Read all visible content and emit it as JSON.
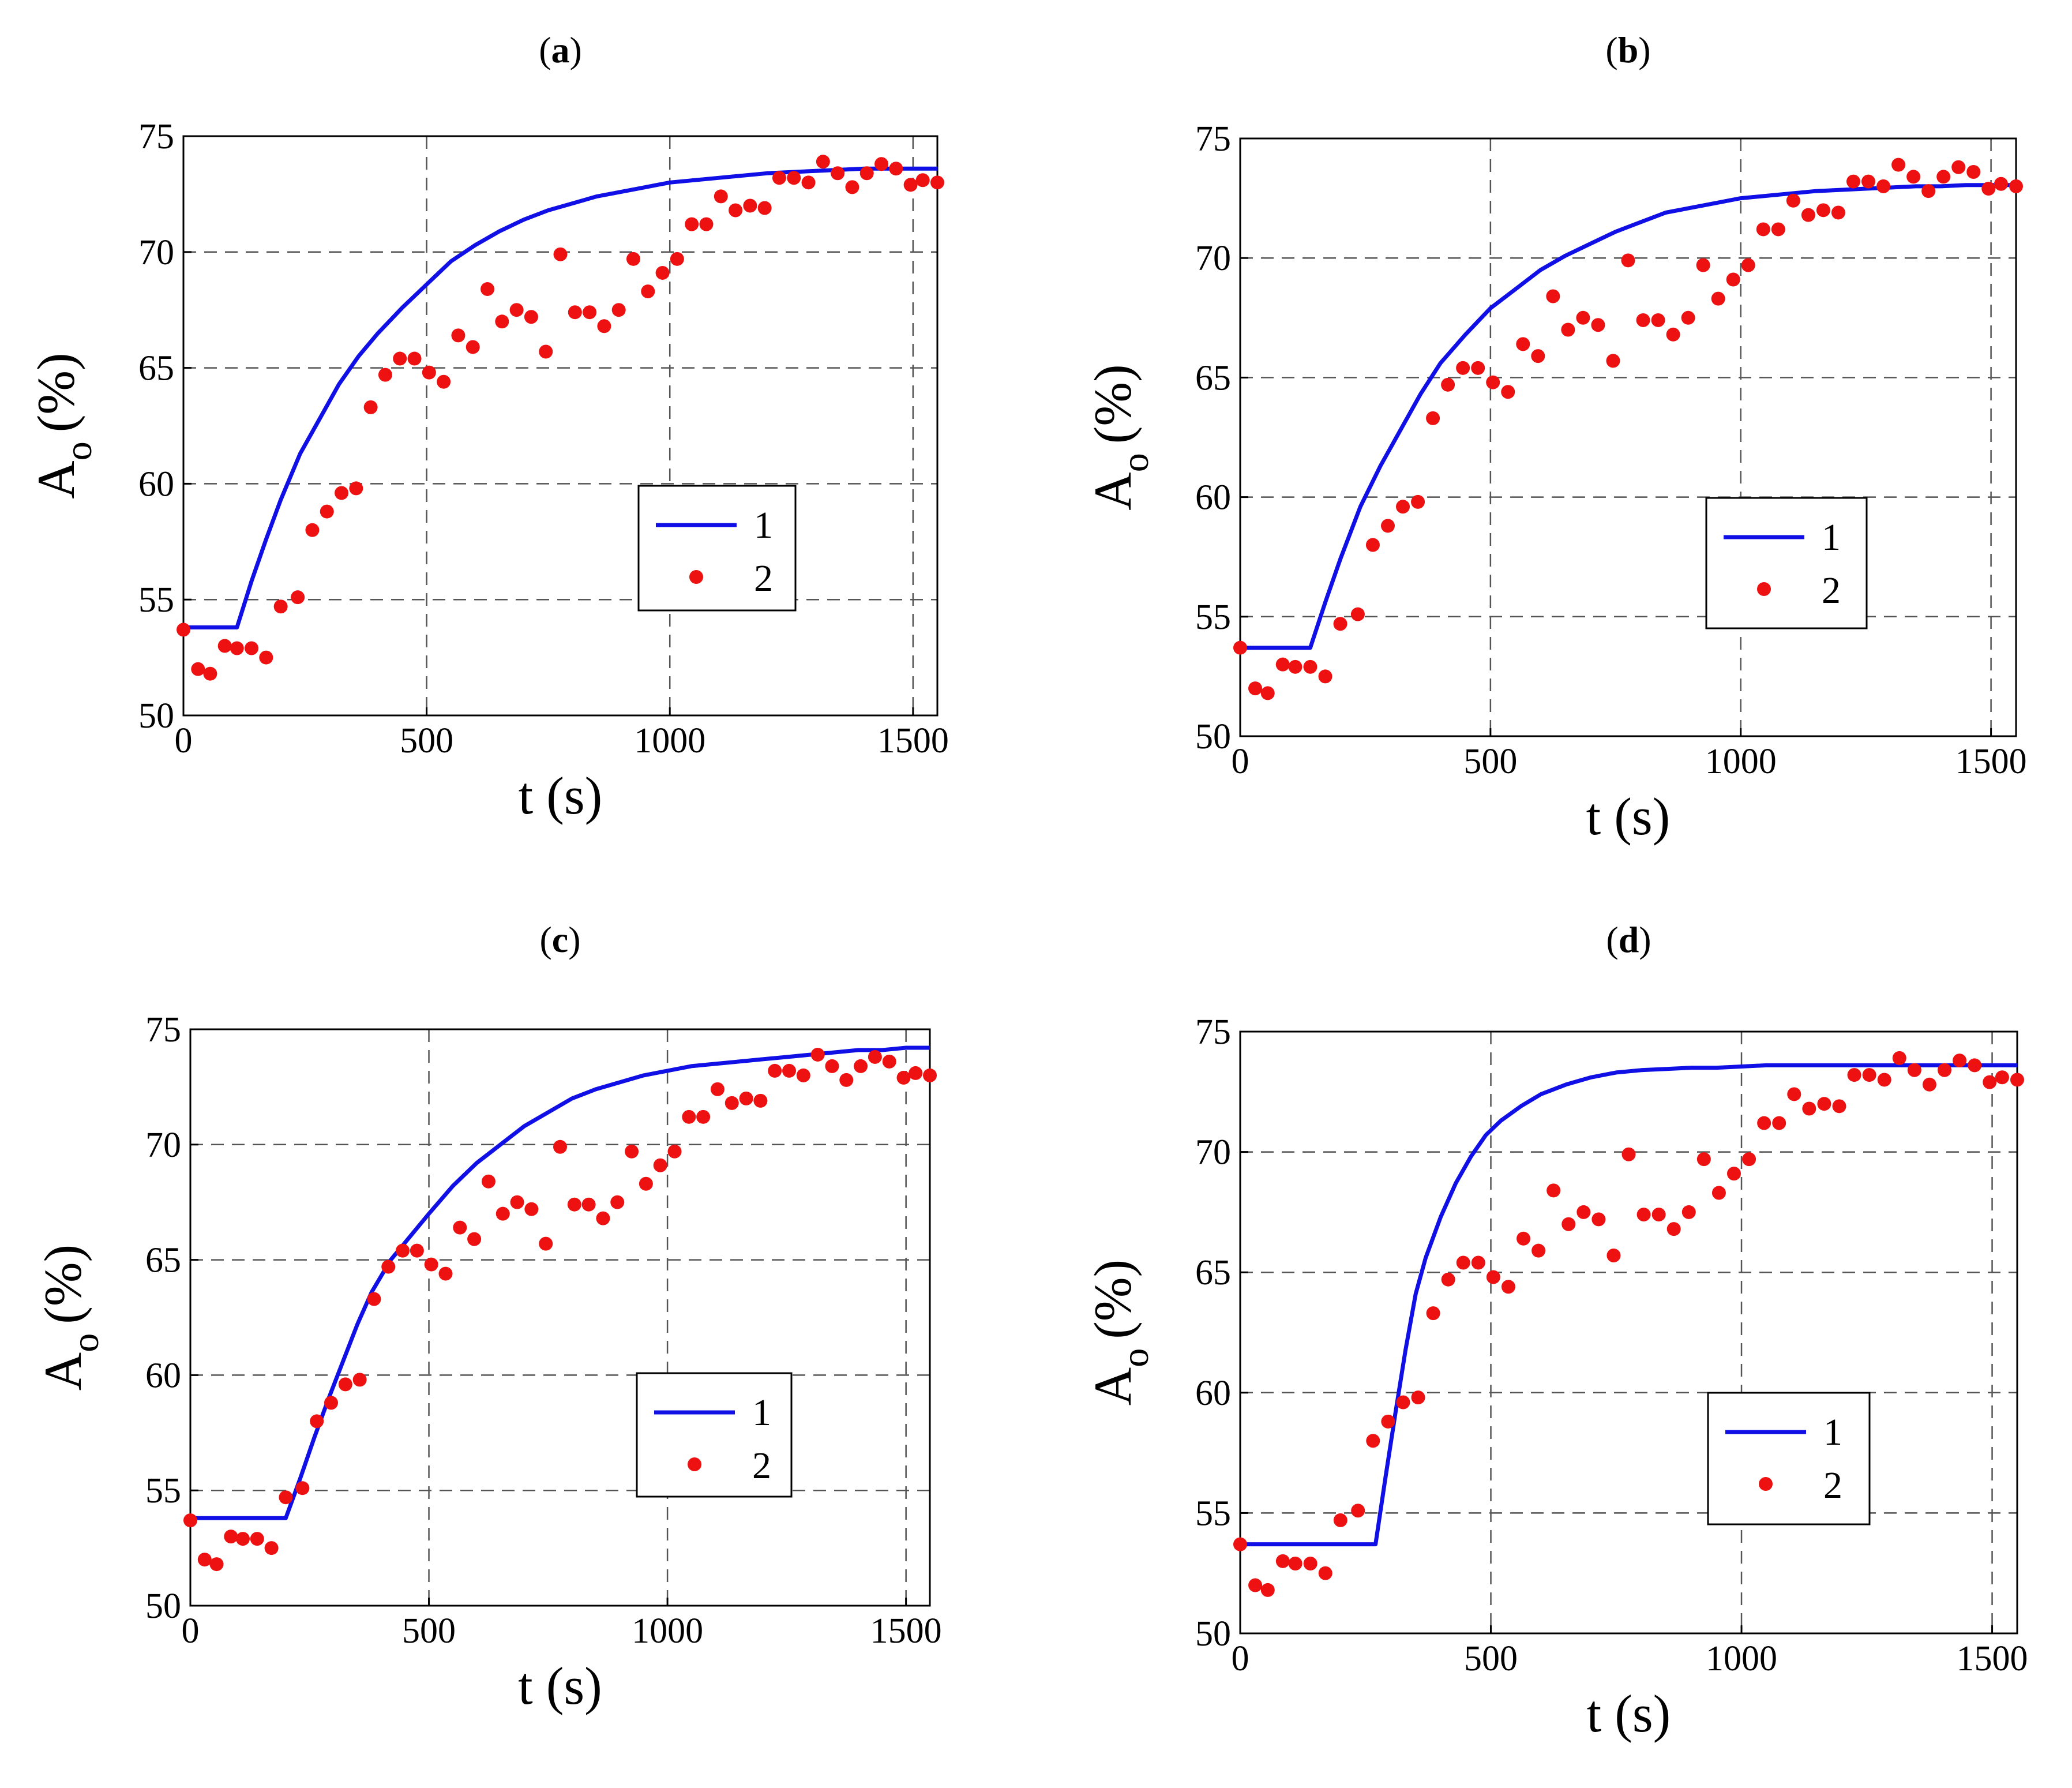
{
  "colors": {
    "model": "#1010e6",
    "experiment": "#ee1111",
    "grid": "#555555",
    "axis": "#000000"
  },
  "chart_data": [
    {
      "type": "line",
      "panel_label": "a",
      "xlabel": "t (s)",
      "ylabel_main": "A",
      "ylabel_sub": "o",
      "ylabel_unit": "(%)",
      "xlim": [
        0,
        1550
      ],
      "ylim": [
        50,
        75
      ],
      "xticks": [
        0,
        500,
        1000,
        1500
      ],
      "yticks": [
        50,
        55,
        60,
        65,
        70,
        75
      ],
      "legend": [
        "1",
        "2"
      ],
      "series": [
        {
          "name": "1",
          "style": "line",
          "x": [
            0,
            110,
            140,
            170,
            200,
            240,
            280,
            320,
            360,
            400,
            450,
            500,
            550,
            600,
            650,
            700,
            750,
            800,
            850,
            900,
            950,
            1000,
            1050,
            1100,
            1150,
            1200,
            1250,
            1300,
            1350,
            1400,
            1450,
            1500,
            1550
          ],
          "y": [
            53.8,
            53.8,
            55.8,
            57.6,
            59.3,
            61.3,
            62.8,
            64.3,
            65.5,
            66.5,
            67.6,
            68.6,
            69.6,
            70.3,
            70.9,
            71.4,
            71.8,
            72.1,
            72.4,
            72.6,
            72.8,
            73.0,
            73.1,
            73.2,
            73.3,
            73.4,
            73.45,
            73.5,
            73.55,
            73.6,
            73.6,
            73.6,
            73.6
          ]
        },
        {
          "name": "2",
          "style": "scatter",
          "x": [
            0,
            30,
            55,
            85,
            110,
            140,
            170,
            200,
            235,
            265,
            295,
            325,
            355,
            385,
            415,
            445,
            475,
            505,
            535,
            565,
            595,
            625,
            655,
            685,
            715,
            745,
            775,
            805,
            835,
            865,
            895,
            925,
            955,
            985,
            1015,
            1045,
            1075,
            1105,
            1135,
            1165,
            1195,
            1225,
            1255,
            1285,
            1315,
            1345,
            1375,
            1405,
            1435,
            1465,
            1495,
            1520,
            1550
          ],
          "y": [
            53.7,
            52.0,
            51.8,
            53.0,
            52.9,
            52.9,
            52.5,
            54.7,
            55.1,
            58.0,
            58.8,
            59.6,
            59.8,
            63.3,
            64.7,
            65.4,
            65.4,
            64.8,
            64.4,
            66.4,
            65.9,
            68.4,
            67.0,
            67.5,
            67.2,
            65.7,
            69.9,
            67.4,
            67.4,
            66.8,
            67.5,
            69.7,
            68.3,
            69.1,
            69.7,
            71.2,
            71.2,
            72.4,
            71.8,
            72.0,
            71.9,
            73.2,
            73.2,
            73.0,
            73.9,
            73.4,
            72.8,
            73.4,
            73.8,
            73.6,
            72.9,
            73.1,
            73.0
          ]
        }
      ]
    },
    {
      "type": "line",
      "panel_label": "b",
      "xlabel": "t (s)",
      "ylabel_main": "A",
      "ylabel_sub": "o",
      "ylabel_unit": "(%)",
      "xlim": [
        0,
        1550
      ],
      "ylim": [
        50,
        75
      ],
      "xticks": [
        0,
        500,
        1000,
        1500
      ],
      "yticks": [
        50,
        55,
        60,
        65,
        70,
        75
      ],
      "legend": [
        "1",
        "2"
      ],
      "series": [
        {
          "name": "1",
          "style": "line",
          "x": [
            0,
            140,
            170,
            200,
            240,
            280,
            320,
            360,
            400,
            450,
            500,
            550,
            600,
            650,
            700,
            750,
            800,
            850,
            900,
            950,
            1000,
            1050,
            1100,
            1150,
            1200,
            1250,
            1300,
            1350,
            1400,
            1450,
            1500,
            1550
          ],
          "y": [
            53.7,
            53.7,
            55.6,
            57.4,
            59.6,
            61.3,
            62.8,
            64.3,
            65.6,
            66.8,
            67.9,
            68.7,
            69.5,
            70.1,
            70.6,
            71.1,
            71.5,
            71.9,
            72.1,
            72.3,
            72.5,
            72.6,
            72.7,
            72.8,
            72.85,
            72.9,
            72.95,
            73.0,
            73.0,
            73.05,
            73.05,
            73.05
          ]
        },
        {
          "name": "2",
          "style": "scatter",
          "x": [
            0,
            30,
            55,
            85,
            110,
            140,
            170,
            200,
            235,
            265,
            295,
            325,
            355,
            385,
            415,
            445,
            475,
            505,
            535,
            565,
            595,
            625,
            655,
            685,
            715,
            745,
            775,
            805,
            835,
            865,
            895,
            925,
            955,
            985,
            1015,
            1045,
            1075,
            1105,
            1135,
            1165,
            1195,
            1225,
            1255,
            1285,
            1315,
            1345,
            1375,
            1405,
            1435,
            1465,
            1495,
            1520,
            1550
          ],
          "y": [
            53.7,
            52.0,
            51.8,
            53.0,
            52.9,
            52.9,
            52.5,
            54.7,
            55.1,
            58.0,
            58.8,
            59.6,
            59.8,
            63.3,
            64.7,
            65.4,
            65.4,
            64.8,
            64.4,
            66.4,
            65.9,
            68.4,
            67.0,
            67.5,
            67.2,
            65.7,
            69.9,
            67.4,
            67.4,
            66.8,
            67.5,
            69.7,
            68.3,
            69.1,
            69.7,
            71.2,
            71.2,
            72.4,
            71.8,
            72.0,
            71.9,
            73.2,
            73.2,
            73.0,
            73.9,
            73.4,
            72.8,
            73.4,
            73.8,
            73.6,
            72.9,
            73.1,
            73.0
          ]
        }
      ]
    },
    {
      "type": "line",
      "panel_label": "c",
      "xlabel": "t (s)",
      "ylabel_main": "A",
      "ylabel_sub": "o",
      "ylabel_unit": "(%)",
      "xlim": [
        0,
        1550
      ],
      "ylim": [
        50,
        75
      ],
      "xticks": [
        0,
        500,
        1000,
        1500
      ],
      "yticks": [
        50,
        55,
        60,
        65,
        70,
        75
      ],
      "legend": [
        "1",
        "2"
      ],
      "series": [
        {
          "name": "1",
          "style": "line",
          "x": [
            0,
            200,
            230,
            260,
            290,
            320,
            350,
            380,
            420,
            460,
            500,
            550,
            600,
            650,
            700,
            750,
            800,
            850,
            900,
            950,
            1000,
            1050,
            1100,
            1150,
            1200,
            1250,
            1300,
            1350,
            1400,
            1450,
            1500,
            1550
          ],
          "y": [
            53.8,
            53.8,
            55.5,
            57.3,
            59.0,
            60.6,
            62.2,
            63.6,
            65.0,
            66.0,
            67.0,
            68.2,
            69.2,
            70.0,
            70.8,
            71.4,
            72.0,
            72.4,
            72.7,
            73.0,
            73.2,
            73.4,
            73.5,
            73.6,
            73.7,
            73.8,
            73.9,
            74.0,
            74.1,
            74.1,
            74.2,
            74.2
          ]
        },
        {
          "name": "2",
          "style": "scatter",
          "x": [
            0,
            30,
            55,
            85,
            110,
            140,
            170,
            200,
            235,
            265,
            295,
            325,
            355,
            385,
            415,
            445,
            475,
            505,
            535,
            565,
            595,
            625,
            655,
            685,
            715,
            745,
            775,
            805,
            835,
            865,
            895,
            925,
            955,
            985,
            1015,
            1045,
            1075,
            1105,
            1135,
            1165,
            1195,
            1225,
            1255,
            1285,
            1315,
            1345,
            1375,
            1405,
            1435,
            1465,
            1495,
            1520,
            1550
          ],
          "y": [
            53.7,
            52.0,
            51.8,
            53.0,
            52.9,
            52.9,
            52.5,
            54.7,
            55.1,
            58.0,
            58.8,
            59.6,
            59.8,
            63.3,
            64.7,
            65.4,
            65.4,
            64.8,
            64.4,
            66.4,
            65.9,
            68.4,
            67.0,
            67.5,
            67.2,
            65.7,
            69.9,
            67.4,
            67.4,
            66.8,
            67.5,
            69.7,
            68.3,
            69.1,
            69.7,
            71.2,
            71.2,
            72.4,
            71.8,
            72.0,
            71.9,
            73.2,
            73.2,
            73.0,
            73.9,
            73.4,
            72.8,
            73.4,
            73.8,
            73.6,
            72.9,
            73.1,
            73.0
          ]
        }
      ]
    },
    {
      "type": "line",
      "panel_label": "d",
      "xlabel": "t (s)",
      "ylabel_main": "A",
      "ylabel_sub": "o",
      "ylabel_unit": "(%)",
      "xlim": [
        0,
        1550
      ],
      "ylim": [
        50,
        75
      ],
      "xticks": [
        0,
        500,
        1000,
        1500
      ],
      "yticks": [
        50,
        55,
        60,
        65,
        70,
        75
      ],
      "legend": [
        "1",
        "2"
      ],
      "series": [
        {
          "name": "1",
          "style": "line",
          "x": [
            0,
            270,
            290,
            310,
            330,
            350,
            370,
            400,
            430,
            460,
            490,
            520,
            560,
            600,
            650,
            700,
            750,
            800,
            850,
            900,
            950,
            1000,
            1050,
            1100,
            1200,
            1300,
            1400,
            1500,
            1550
          ],
          "y": [
            53.7,
            53.7,
            56.5,
            59.2,
            61.8,
            64.1,
            65.6,
            67.3,
            68.7,
            69.8,
            70.7,
            71.3,
            71.9,
            72.4,
            72.8,
            73.1,
            73.3,
            73.4,
            73.45,
            73.5,
            73.5,
            73.55,
            73.6,
            73.6,
            73.6,
            73.6,
            73.6,
            73.6,
            73.6
          ]
        },
        {
          "name": "2",
          "style": "scatter",
          "x": [
            0,
            30,
            55,
            85,
            110,
            140,
            170,
            200,
            235,
            265,
            295,
            325,
            355,
            385,
            415,
            445,
            475,
            505,
            535,
            565,
            595,
            625,
            655,
            685,
            715,
            745,
            775,
            805,
            835,
            865,
            895,
            925,
            955,
            985,
            1015,
            1045,
            1075,
            1105,
            1135,
            1165,
            1195,
            1225,
            1255,
            1285,
            1315,
            1345,
            1375,
            1405,
            1435,
            1465,
            1495,
            1520,
            1550
          ],
          "y": [
            53.7,
            52.0,
            51.8,
            53.0,
            52.9,
            52.9,
            52.5,
            54.7,
            55.1,
            58.0,
            58.8,
            59.6,
            59.8,
            63.3,
            64.7,
            65.4,
            65.4,
            64.8,
            64.4,
            66.4,
            65.9,
            68.4,
            67.0,
            67.5,
            67.2,
            65.7,
            69.9,
            67.4,
            67.4,
            66.8,
            67.5,
            69.7,
            68.3,
            69.1,
            69.7,
            71.2,
            71.2,
            72.4,
            71.8,
            72.0,
            71.9,
            73.2,
            73.2,
            73.0,
            73.9,
            73.4,
            72.8,
            73.4,
            73.8,
            73.6,
            72.9,
            73.1,
            73.0
          ]
        }
      ]
    }
  ]
}
